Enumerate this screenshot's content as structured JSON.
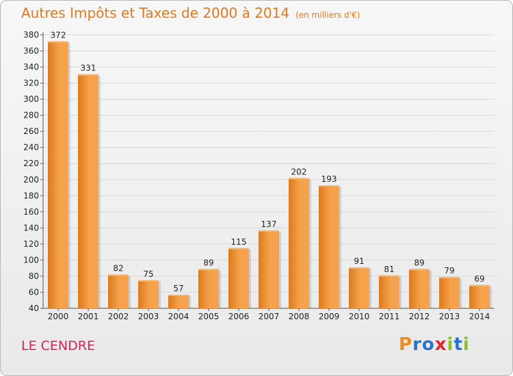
{
  "header": {
    "title": "Autres Impôts et Taxes de 2000 à 2014",
    "subtitle": "(en milliers d'€)"
  },
  "footer": {
    "city": "LE CENDRE",
    "logo": {
      "letters": [
        "P",
        "r",
        "o",
        "x",
        "i",
        "t",
        "i"
      ],
      "colors": [
        "#f08a1c",
        "#2a74c8",
        "#2a74c8",
        "#e0262f",
        "#8cbf26",
        "#2a74c8",
        "#8cbf26"
      ]
    }
  },
  "colors": {
    "bar_light": "#f6a24c",
    "bar_dark": "#db7a1d",
    "title": "#e0791c",
    "city": "#d6205e"
  },
  "chart_data": {
    "type": "bar",
    "title": "Autres Impôts et Taxes de 2000 à 2014",
    "subtitle": "(en milliers d'€)",
    "categories": [
      "2000",
      "2001",
      "2002",
      "2003",
      "2004",
      "2005",
      "2006",
      "2007",
      "2008",
      "2009",
      "2010",
      "2011",
      "2012",
      "2013",
      "2014"
    ],
    "values": [
      372,
      331,
      82,
      75,
      57,
      89,
      115,
      137,
      202,
      193,
      91,
      81,
      89,
      79,
      69
    ],
    "ylim": [
      40,
      380
    ],
    "yticks": [
      40,
      60,
      80,
      100,
      120,
      140,
      160,
      180,
      200,
      220,
      240,
      260,
      280,
      300,
      320,
      340,
      360,
      380
    ],
    "grid": true
  }
}
